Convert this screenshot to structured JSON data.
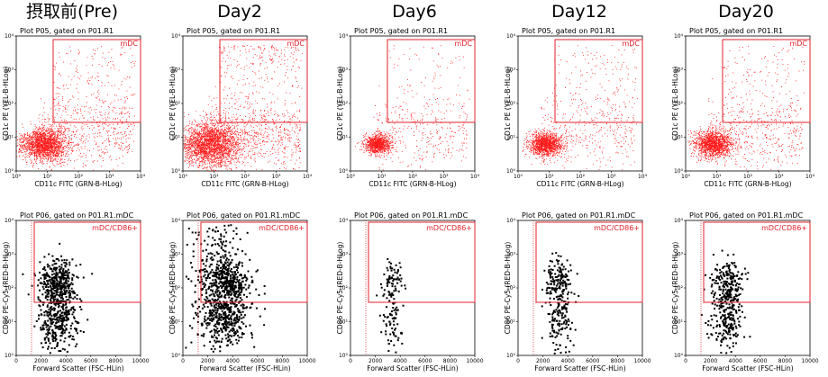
{
  "columns": [
    {
      "title": "摂取前(Pre)",
      "seed": 11,
      "spread": 1.0,
      "high": 0.3,
      "nTop": 330,
      "nBot": 360
    },
    {
      "title": "Day2",
      "seed": 23,
      "spread": 1.35,
      "high": 1.0,
      "nTop": 380,
      "nBot": 430
    },
    {
      "title": "Day6",
      "seed": 37,
      "spread": 0.55,
      "high": 0.2,
      "nTop": 70,
      "nBot": 70
    },
    {
      "title": "Day12",
      "seed": 41,
      "spread": 0.7,
      "high": 0.35,
      "nTop": 140,
      "nBot": 140
    },
    {
      "title": "Day20",
      "seed": 53,
      "spread": 0.8,
      "high": 0.3,
      "nTop": 190,
      "nBot": 220
    }
  ],
  "top_plot": {
    "title": "Plot P05, gated on P01.R1",
    "gate_label": "mDC",
    "xlabel": "CD11c FITC (GRN-B-HLog)",
    "ylabel": "CD1c PE (YEL-B-HLog)",
    "xticks": [
      "10⁰",
      "10¹",
      "10²",
      "10³",
      "10⁴"
    ],
    "yticks": [
      "10⁰",
      "10¹",
      "10²",
      "10³",
      "10⁴"
    ]
  },
  "bottom_plot": {
    "title": "Plot P06, gated on P01.R1.mDC",
    "gate_label": "mDC/CD86+",
    "xlabel": "Forward Scatter (FSC-HLin)",
    "ylabel": "CD86 PE-Cy5 (RED-B-HLog)",
    "xticks": [
      "0",
      "2000",
      "4000",
      "6000",
      "8000",
      "10000"
    ],
    "yticks": [
      "10⁰",
      "10¹",
      "10²",
      "10³",
      "10⁴"
    ]
  },
  "colors": {
    "dots_top": "#ff1a1a",
    "gate": "#e0202a",
    "dots_bottom": "#000000"
  }
}
